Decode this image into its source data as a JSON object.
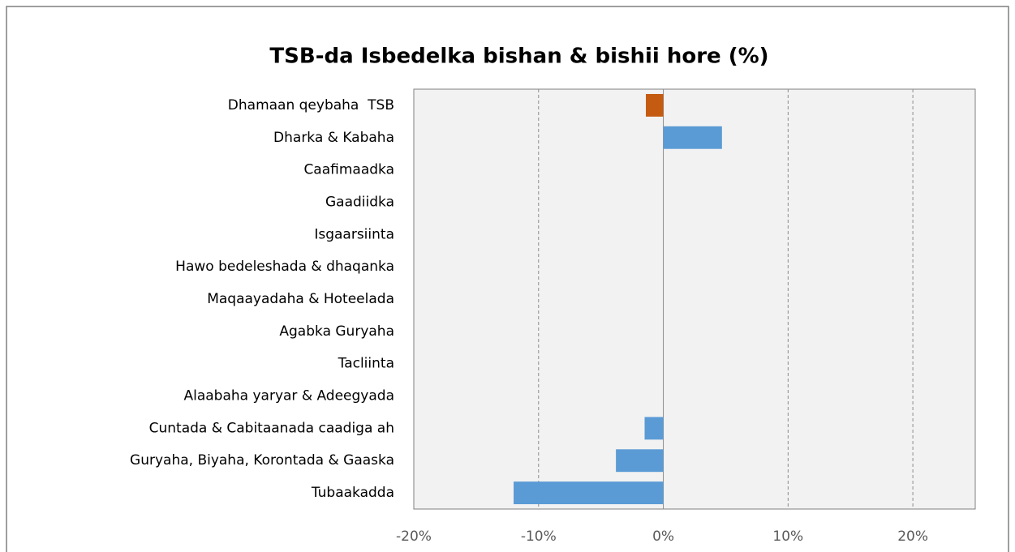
{
  "chart_data": {
    "type": "hbar",
    "title": "TSB-da Isbedelka bishan & bishii hore (%)",
    "categories": [
      "Dhamaan qeybaha  TSB",
      "Dharka & Kabaha",
      "Caafimaadka",
      "Gaadiidka",
      "Isgaarsiinta",
      "Hawo bedeleshada & dhaqanka",
      "Maqaayadaha & Hoteelada",
      "Agabka Guryaha",
      "Tacliinta",
      "Alaabaha yaryar & Adeegyada",
      "Cuntada & Cabitaanada caadiga ah",
      "Guryaha, Biyaha, Korontada & Gaaska",
      "Tubaakadda"
    ],
    "values": [
      -1.4,
      4.7,
      0,
      0,
      0,
      0,
      0,
      0,
      0,
      0,
      -1.5,
      -3.8,
      -12.0
    ],
    "colors": [
      "#c55a11",
      "#5b9bd5",
      "#5b9bd5",
      "#5b9bd5",
      "#5b9bd5",
      "#5b9bd5",
      "#5b9bd5",
      "#5b9bd5",
      "#5b9bd5",
      "#5b9bd5",
      "#5b9bd5",
      "#5b9bd5",
      "#5b9bd5"
    ],
    "xlim": [
      -20,
      25
    ],
    "xticks": [
      {
        "value": -20,
        "label": "-20%"
      },
      {
        "value": -10,
        "label": "-10%"
      },
      {
        "value": 0,
        "label": "0%"
      },
      {
        "value": 10,
        "label": "10%"
      },
      {
        "value": 20,
        "label": "20%"
      }
    ],
    "grid": true
  }
}
